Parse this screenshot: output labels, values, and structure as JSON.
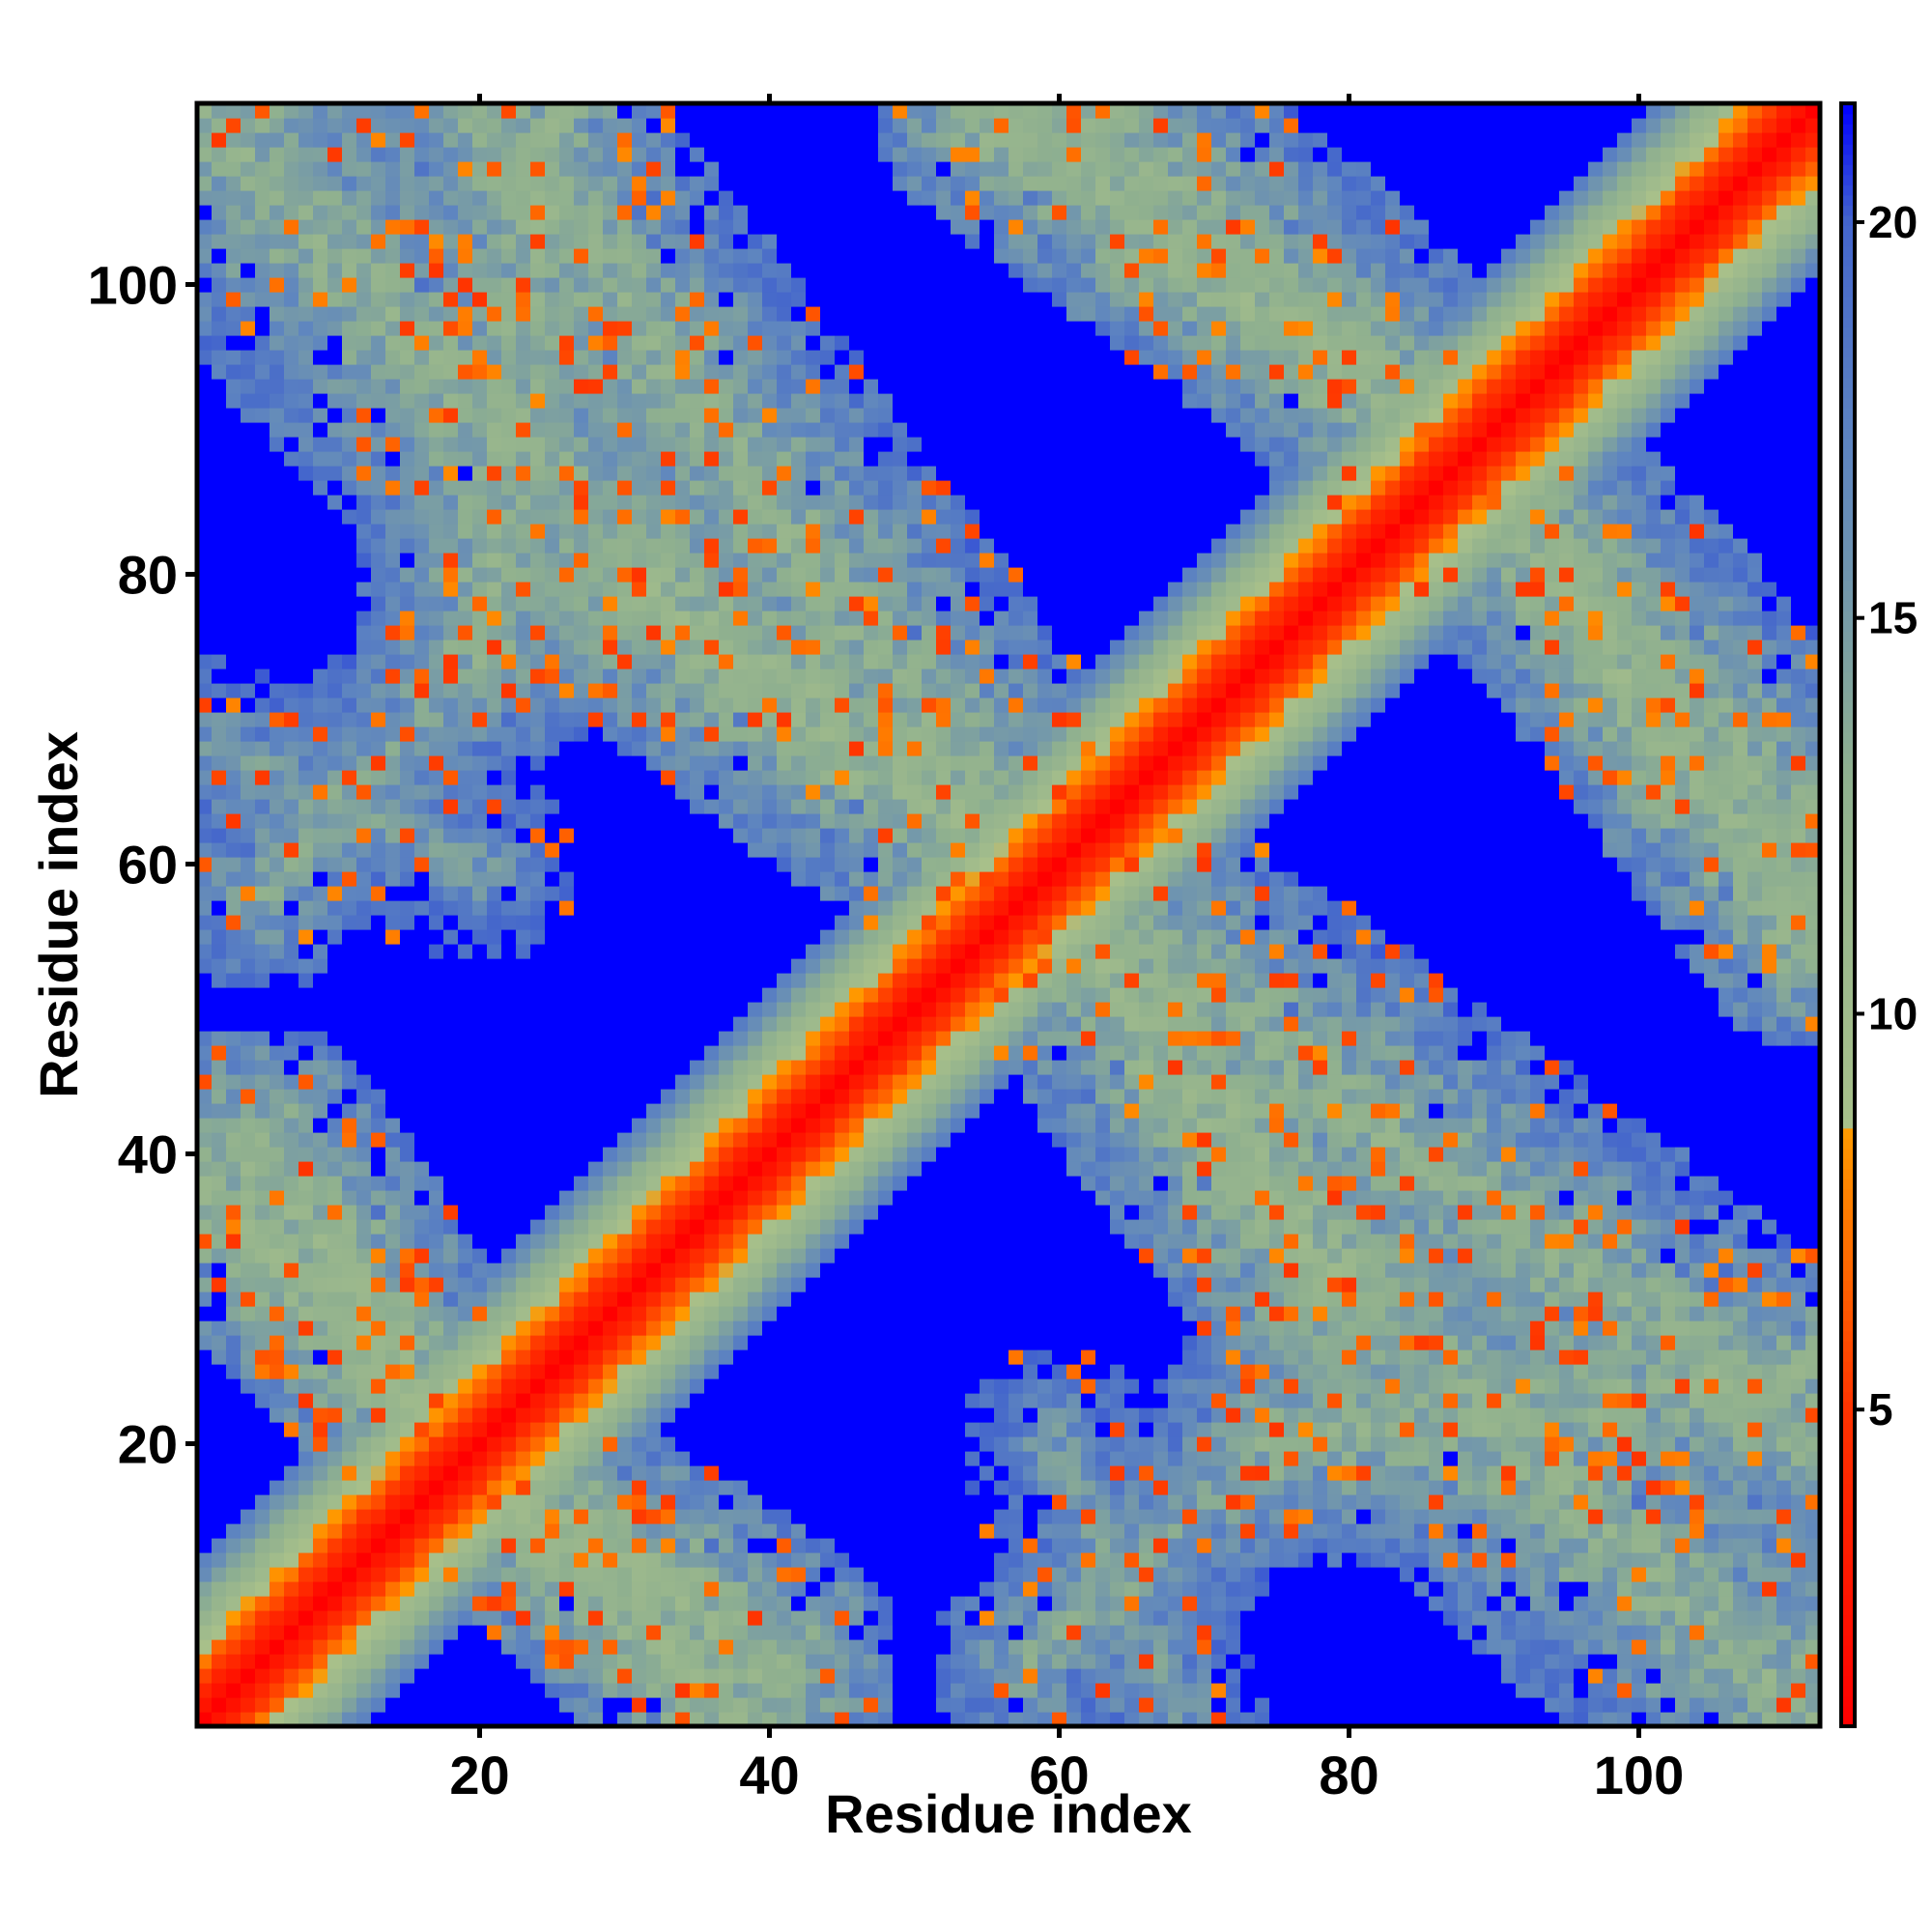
{
  "chart_data": {
    "type": "heatmap",
    "title": "",
    "xlabel": "Residue index",
    "ylabel": "Residue index",
    "n_residues": 112,
    "xlim": [
      1,
      112
    ],
    "ylim": [
      1,
      112
    ],
    "x_ticks": [
      20,
      40,
      60,
      80,
      100
    ],
    "y_ticks": [
      20,
      40,
      60,
      80,
      100
    ],
    "colorbar": {
      "range": [
        1,
        21.5
      ],
      "ticks": [
        5,
        10,
        15,
        20
      ],
      "stops": [
        {
          "value": 1,
          "color": "#ff0000"
        },
        {
          "value": 5,
          "color": "#ff3300"
        },
        {
          "value": 8.5,
          "color": "#ff9900"
        },
        {
          "value": 8.6,
          "color": "#a8c08a"
        },
        {
          "value": 13,
          "color": "#8fb08f"
        },
        {
          "value": 17,
          "color": "#5f86bf"
        },
        {
          "value": 20,
          "color": "#4466cc"
        },
        {
          "value": 21.5,
          "color": "#0000ff"
        }
      ]
    },
    "background_value": 21.5,
    "diagonal_band": {
      "width_residues": 10,
      "values_by_offset": [
        1,
        2.5,
        4,
        5.5,
        7,
        8.5,
        10,
        11.5,
        13,
        14.5,
        16,
        17.5
      ]
    },
    "contact_bands": [
      {
        "from": [
          1,
          112
        ],
        "to": [
          30,
          80
        ],
        "half_width": 12,
        "typical_value": 13
      },
      {
        "from": [
          30,
          80
        ],
        "to": [
          60,
          58
        ],
        "half_width": 10,
        "typical_value": 12
      },
      {
        "from": [
          60,
          58
        ],
        "to": [
          112,
          20
        ],
        "half_width": 11,
        "typical_value": 13
      },
      {
        "from": [
          1,
          38
        ],
        "to": [
          20,
          18
        ],
        "half_width": 8,
        "typical_value": 12
      },
      {
        "from": [
          20,
          18
        ],
        "to": [
          40,
          5
        ],
        "half_width": 9,
        "typical_value": 12
      },
      {
        "from": [
          55,
          112
        ],
        "to": [
          88,
          88
        ],
        "half_width": 8,
        "typical_value": 12
      },
      {
        "from": [
          88,
          88
        ],
        "to": [
          112,
          62
        ],
        "half_width": 10,
        "typical_value": 13
      },
      {
        "from": [
          58,
          5
        ],
        "to": [
          75,
          20
        ],
        "half_width": 7,
        "typical_value": 14
      },
      {
        "from": [
          75,
          20
        ],
        "to": [
          112,
          25
        ],
        "half_width": 9,
        "typical_value": 13
      },
      {
        "from": [
          1,
          68
        ],
        "to": [
          20,
          60
        ],
        "half_width": 7,
        "typical_value": 15
      }
    ],
    "symmetric": true
  }
}
